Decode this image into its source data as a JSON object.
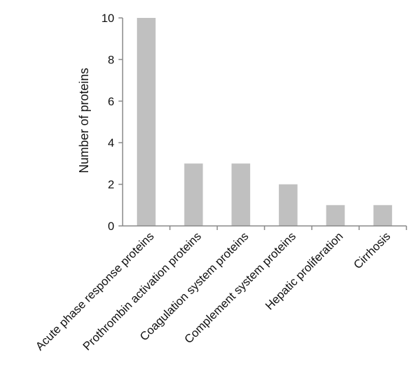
{
  "chart_data": {
    "type": "bar",
    "categories": [
      "Acute phase response proteins",
      "Prothrombin activation proteins",
      "Coagulation system proteins",
      "Complement system proteins",
      "Hepatic proliferation",
      "Cirrhosis"
    ],
    "values": [
      10,
      3,
      3,
      2,
      1,
      1
    ],
    "xlabel": "",
    "ylabel": "Number of proteins",
    "ylim": [
      0,
      10
    ],
    "yticks": [
      0,
      2,
      4,
      6,
      8,
      10
    ],
    "grid": false,
    "bar_color": "#c0c0c0",
    "axis_color": "#888888"
  }
}
